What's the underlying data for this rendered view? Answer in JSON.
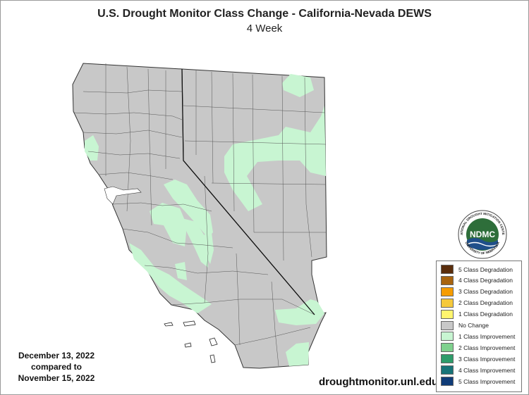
{
  "title": "U.S. Drought Monitor Class Change - California-Nevada DEWS",
  "subtitle": "4 Week",
  "dates": {
    "line1": "December 13, 2022",
    "line2": "compared to",
    "line3": "November 15, 2022"
  },
  "url": "droughtmonitor.unl.edu",
  "logo": {
    "text": "NDMC",
    "ring_top": "NATIONAL DROUGHT MITIGATION CENTER",
    "ring_bottom": "UNIVERSITY OF NEBRASKA"
  },
  "map_colors": {
    "land": "#c8c8c8",
    "improvement_1": "#c8f5d2",
    "borders": "#333333"
  },
  "legend": [
    {
      "label": "5 Class Degradation",
      "color": "#5a2d0c"
    },
    {
      "label": "4 Class Degradation",
      "color": "#a8640f"
    },
    {
      "label": "3 Class Degradation",
      "color": "#f59c00"
    },
    {
      "label": "2 Class Degradation",
      "color": "#f5c93c"
    },
    {
      "label": "1 Class Degradation",
      "color": "#fff56e"
    },
    {
      "label": "No Change",
      "color": "#c8c8c8"
    },
    {
      "label": "1 Class Improvement",
      "color": "#c8f5d2"
    },
    {
      "label": "2 Class Improvement",
      "color": "#7fd18e"
    },
    {
      "label": "3 Class Improvement",
      "color": "#2e9c6a"
    },
    {
      "label": "4 Class Improvement",
      "color": "#187478"
    },
    {
      "label": "5 Class Improvement",
      "color": "#103c78"
    }
  ]
}
